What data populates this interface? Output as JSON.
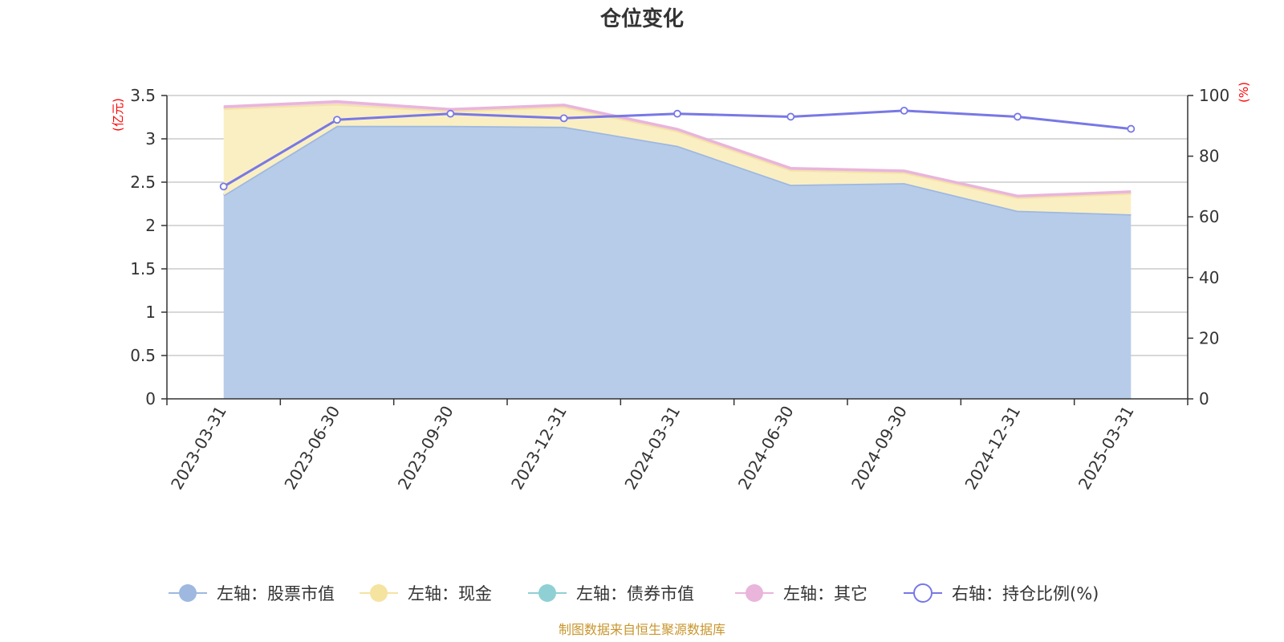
{
  "chart_data": {
    "type": "area",
    "title": "仓位变化",
    "categories": [
      "2023-03-31",
      "2023-06-30",
      "2023-09-30",
      "2023-12-31",
      "2024-03-31",
      "2024-06-30",
      "2024-09-30",
      "2024-12-31",
      "2025-03-31"
    ],
    "left_axis": {
      "unit": "(亿元)",
      "min": 0,
      "max": 3.5,
      "ticks": [
        "0",
        "0.5",
        "1",
        "1.5",
        "2",
        "2.5",
        "3",
        "3.5"
      ]
    },
    "right_axis": {
      "unit": "(%)",
      "min": 0,
      "max": 100,
      "ticks": [
        "0",
        "20",
        "40",
        "60",
        "80",
        "100"
      ]
    },
    "stacked_series": [
      {
        "name": "左轴：股票市值",
        "color": "#9eb8e0",
        "fill": "#b7cce9",
        "values": [
          2.35,
          3.15,
          3.15,
          3.14,
          2.92,
          2.47,
          2.49,
          2.17,
          2.13
        ]
      },
      {
        "name": "左轴：现金",
        "color": "#f5e3a0",
        "fill": "#faefc3",
        "values": [
          1.0,
          0.25,
          0.17,
          0.23,
          0.17,
          0.17,
          0.12,
          0.15,
          0.24
        ]
      },
      {
        "name": "左轴：债券市值",
        "color": "#8fd0d4",
        "fill": "#b5e0e2",
        "values": [
          0,
          0,
          0,
          0,
          0,
          0,
          0,
          0,
          0
        ]
      },
      {
        "name": "左轴：其它",
        "color": "#e9b5da",
        "fill": "#f2d2e8",
        "values": [
          0.02,
          0.03,
          0.02,
          0.02,
          0.02,
          0.02,
          0.02,
          0.02,
          0.02
        ]
      }
    ],
    "line_series": {
      "name": "右轴：持仓比例(%)",
      "color": "#7878e6",
      "values": [
        70,
        92,
        94,
        92.5,
        94,
        93,
        95,
        93,
        89
      ]
    },
    "grid": true,
    "legend_position": "bottom"
  },
  "source_note": "制图数据来自恒生聚源数据库"
}
